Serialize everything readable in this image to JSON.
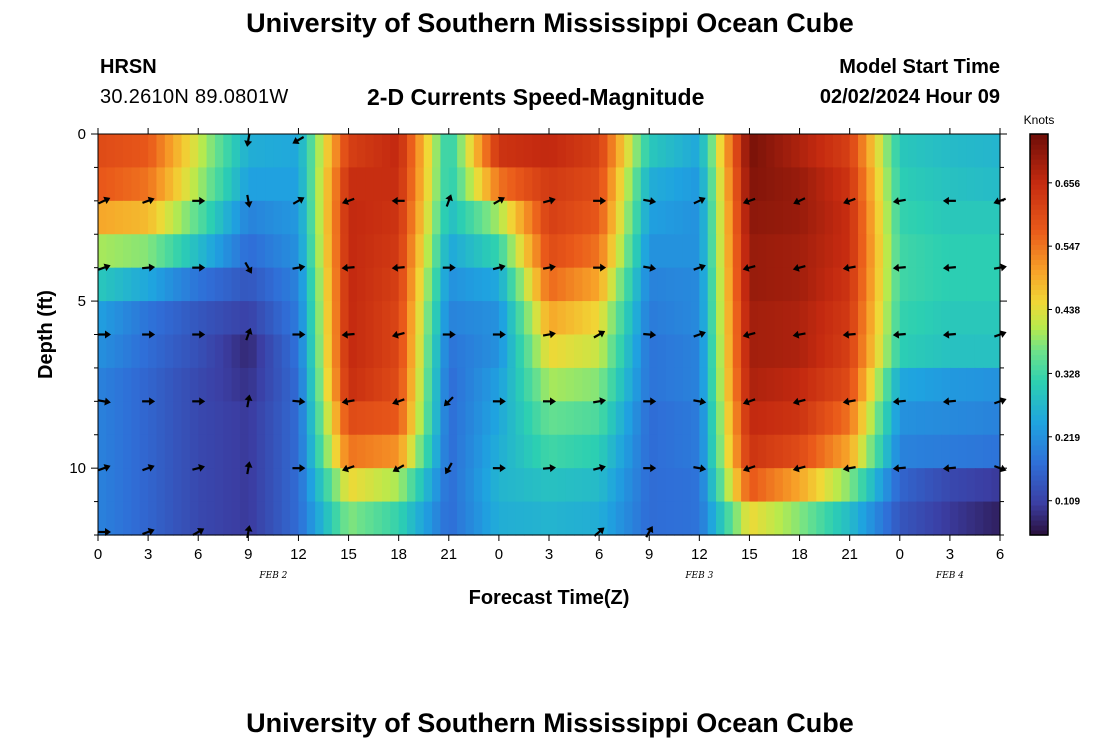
{
  "header": {
    "title": "University of Southern Mississippi Ocean Cube",
    "station": "HRSN",
    "coords": "30.2610N  89.0801W",
    "product": "2-D Currents Speed-Magnitude",
    "model_start_label": "Model Start Time",
    "model_start_value": "02/02/2024 Hour 09"
  },
  "footer": {
    "title": "University of Southern Mississippi Ocean Cube"
  },
  "chart_data": {
    "type": "heatmap",
    "title": "2-D Currents Speed-Magnitude",
    "xlabel": "Forecast Time(Z)",
    "ylabel": "Depth (ft)",
    "x_tick_labels": [
      "0",
      "3",
      "6",
      "9",
      "12",
      "15",
      "18",
      "21",
      "0",
      "3",
      "6",
      "9",
      "12",
      "15",
      "18",
      "21",
      "0",
      "3",
      "6"
    ],
    "x_range_hours": [
      0,
      54
    ],
    "y_range_ft": [
      0,
      12
    ],
    "y_ticks": [
      0,
      5,
      10
    ],
    "date_labels": [
      {
        "text": "FEB 2",
        "hour": 10.5
      },
      {
        "text": "FEB 3",
        "hour": 36
      },
      {
        "text": "FEB 4",
        "hour": 51
      }
    ],
    "colorbar": {
      "label": "Knots",
      "min": 0.05,
      "max": 0.74,
      "ticks": [
        0.109,
        0.219,
        0.328,
        0.438,
        0.547,
        0.656
      ]
    },
    "depth_rows_ft": [
      0.5,
      1.5,
      2.5,
      3.5,
      4.5,
      5.5,
      6.5,
      7.5,
      8.5,
      9.5,
      10.5,
      11.5
    ],
    "time_cols_hours": [
      0,
      3,
      6,
      9,
      12,
      15,
      18,
      21,
      24,
      27,
      30,
      33,
      36,
      39,
      42,
      45,
      48,
      51,
      54
    ],
    "speed_knots": [
      [
        0.6,
        0.58,
        0.42,
        0.26,
        0.25,
        0.62,
        0.66,
        0.3,
        0.64,
        0.66,
        0.62,
        0.3,
        0.25,
        0.73,
        0.68,
        0.62,
        0.3,
        0.28,
        0.27
      ],
      [
        0.58,
        0.55,
        0.4,
        0.24,
        0.24,
        0.65,
        0.65,
        0.3,
        0.55,
        0.63,
        0.6,
        0.26,
        0.23,
        0.72,
        0.7,
        0.64,
        0.31,
        0.29,
        0.28
      ],
      [
        0.5,
        0.48,
        0.35,
        0.2,
        0.23,
        0.66,
        0.64,
        0.28,
        0.4,
        0.62,
        0.58,
        0.24,
        0.22,
        0.71,
        0.7,
        0.65,
        0.32,
        0.3,
        0.3
      ],
      [
        0.4,
        0.38,
        0.28,
        0.17,
        0.22,
        0.66,
        0.63,
        0.25,
        0.32,
        0.6,
        0.55,
        0.22,
        0.22,
        0.7,
        0.69,
        0.65,
        0.33,
        0.31,
        0.31
      ],
      [
        0.3,
        0.25,
        0.18,
        0.14,
        0.2,
        0.66,
        0.62,
        0.22,
        0.25,
        0.56,
        0.5,
        0.2,
        0.21,
        0.7,
        0.69,
        0.64,
        0.33,
        0.31,
        0.31
      ],
      [
        0.24,
        0.18,
        0.14,
        0.11,
        0.19,
        0.66,
        0.61,
        0.2,
        0.22,
        0.5,
        0.45,
        0.19,
        0.21,
        0.69,
        0.68,
        0.63,
        0.32,
        0.3,
        0.3
      ],
      [
        0.22,
        0.17,
        0.13,
        0.08,
        0.18,
        0.66,
        0.61,
        0.18,
        0.22,
        0.45,
        0.42,
        0.18,
        0.2,
        0.69,
        0.68,
        0.62,
        0.31,
        0.29,
        0.29
      ],
      [
        0.2,
        0.16,
        0.12,
        0.09,
        0.17,
        0.65,
        0.6,
        0.17,
        0.24,
        0.4,
        0.38,
        0.18,
        0.2,
        0.68,
        0.66,
        0.6,
        0.25,
        0.23,
        0.22
      ],
      [
        0.2,
        0.16,
        0.12,
        0.1,
        0.17,
        0.6,
        0.58,
        0.17,
        0.25,
        0.36,
        0.34,
        0.17,
        0.19,
        0.66,
        0.64,
        0.55,
        0.22,
        0.21,
        0.2
      ],
      [
        0.2,
        0.16,
        0.12,
        0.1,
        0.17,
        0.55,
        0.52,
        0.17,
        0.26,
        0.33,
        0.31,
        0.17,
        0.19,
        0.64,
        0.6,
        0.5,
        0.2,
        0.19,
        0.18
      ],
      [
        0.2,
        0.16,
        0.12,
        0.1,
        0.17,
        0.45,
        0.4,
        0.17,
        0.27,
        0.29,
        0.28,
        0.17,
        0.18,
        0.58,
        0.5,
        0.38,
        0.16,
        0.12,
        0.1
      ],
      [
        0.2,
        0.16,
        0.12,
        0.1,
        0.17,
        0.38,
        0.32,
        0.17,
        0.26,
        0.27,
        0.26,
        0.17,
        0.18,
        0.45,
        0.38,
        0.28,
        0.14,
        0.1,
        0.07
      ]
    ],
    "vector_rows_ft": [
      0,
      2,
      4,
      6,
      8,
      10,
      12
    ],
    "vector_cols_hours": [
      0,
      3,
      6,
      9,
      12,
      15,
      18,
      21,
      24,
      27,
      30,
      33,
      36,
      39,
      42,
      45,
      48,
      51,
      54
    ],
    "vector_dir_deg": [
      [
        0,
        0,
        0,
        260,
        210,
        0,
        0,
        0,
        0,
        0,
        0,
        0,
        0,
        0,
        0,
        0,
        0,
        0,
        0
      ],
      [
        25,
        20,
        0,
        280,
        30,
        200,
        180,
        70,
        30,
        15,
        0,
        350,
        25,
        200,
        205,
        200,
        190,
        180,
        200
      ],
      [
        20,
        5,
        0,
        300,
        10,
        185,
        185,
        0,
        15,
        10,
        0,
        350,
        20,
        195,
        195,
        190,
        185,
        185,
        10
      ],
      [
        0,
        0,
        0,
        70,
        0,
        185,
        195,
        0,
        0,
        10,
        30,
        355,
        20,
        195,
        190,
        185,
        185,
        185,
        20
      ],
      [
        350,
        0,
        0,
        80,
        355,
        190,
        200,
        225,
        0,
        0,
        10,
        0,
        350,
        200,
        195,
        190,
        185,
        185,
        20
      ],
      [
        20,
        20,
        15,
        80,
        0,
        200,
        210,
        240,
        0,
        5,
        15,
        0,
        350,
        200,
        195,
        190,
        185,
        185,
        340
      ],
      [
        0,
        20,
        30,
        80,
        0,
        0,
        0,
        0,
        0,
        0,
        40,
        60,
        0,
        0,
        0,
        0,
        0,
        0,
        0
      ]
    ],
    "vector_present": [
      [
        0,
        0,
        0,
        1,
        1,
        0,
        0,
        0,
        0,
        0,
        0,
        0,
        0,
        0,
        0,
        0,
        0,
        0,
        0
      ],
      [
        1,
        1,
        1,
        1,
        1,
        1,
        1,
        1,
        1,
        1,
        1,
        1,
        1,
        1,
        1,
        1,
        1,
        1,
        1
      ],
      [
        1,
        1,
        1,
        1,
        1,
        1,
        1,
        1,
        1,
        1,
        1,
        1,
        1,
        1,
        1,
        1,
        1,
        1,
        1
      ],
      [
        1,
        1,
        1,
        1,
        1,
        1,
        1,
        1,
        1,
        1,
        1,
        1,
        1,
        1,
        1,
        1,
        1,
        1,
        1
      ],
      [
        1,
        1,
        1,
        1,
        1,
        1,
        1,
        1,
        1,
        1,
        1,
        1,
        1,
        1,
        1,
        1,
        1,
        1,
        1
      ],
      [
        1,
        1,
        1,
        1,
        1,
        1,
        1,
        1,
        1,
        1,
        1,
        1,
        1,
        1,
        1,
        1,
        1,
        1,
        1
      ],
      [
        1,
        1,
        1,
        1,
        0,
        0,
        0,
        0,
        0,
        0,
        1,
        1,
        0,
        0,
        0,
        0,
        0,
        0,
        0
      ]
    ],
    "colormap_stops": [
      [
        0.0,
        "#2a0f3a"
      ],
      [
        0.08,
        "#3b3ea3"
      ],
      [
        0.18,
        "#2f6fd8"
      ],
      [
        0.28,
        "#1fa3e0"
      ],
      [
        0.38,
        "#2ccfb2"
      ],
      [
        0.46,
        "#6ee28a"
      ],
      [
        0.52,
        "#b9ea4c"
      ],
      [
        0.58,
        "#f0d836"
      ],
      [
        0.66,
        "#f7a128"
      ],
      [
        0.76,
        "#ea5a1a"
      ],
      [
        0.88,
        "#c42a10"
      ],
      [
        1.0,
        "#6e0e08"
      ]
    ]
  }
}
